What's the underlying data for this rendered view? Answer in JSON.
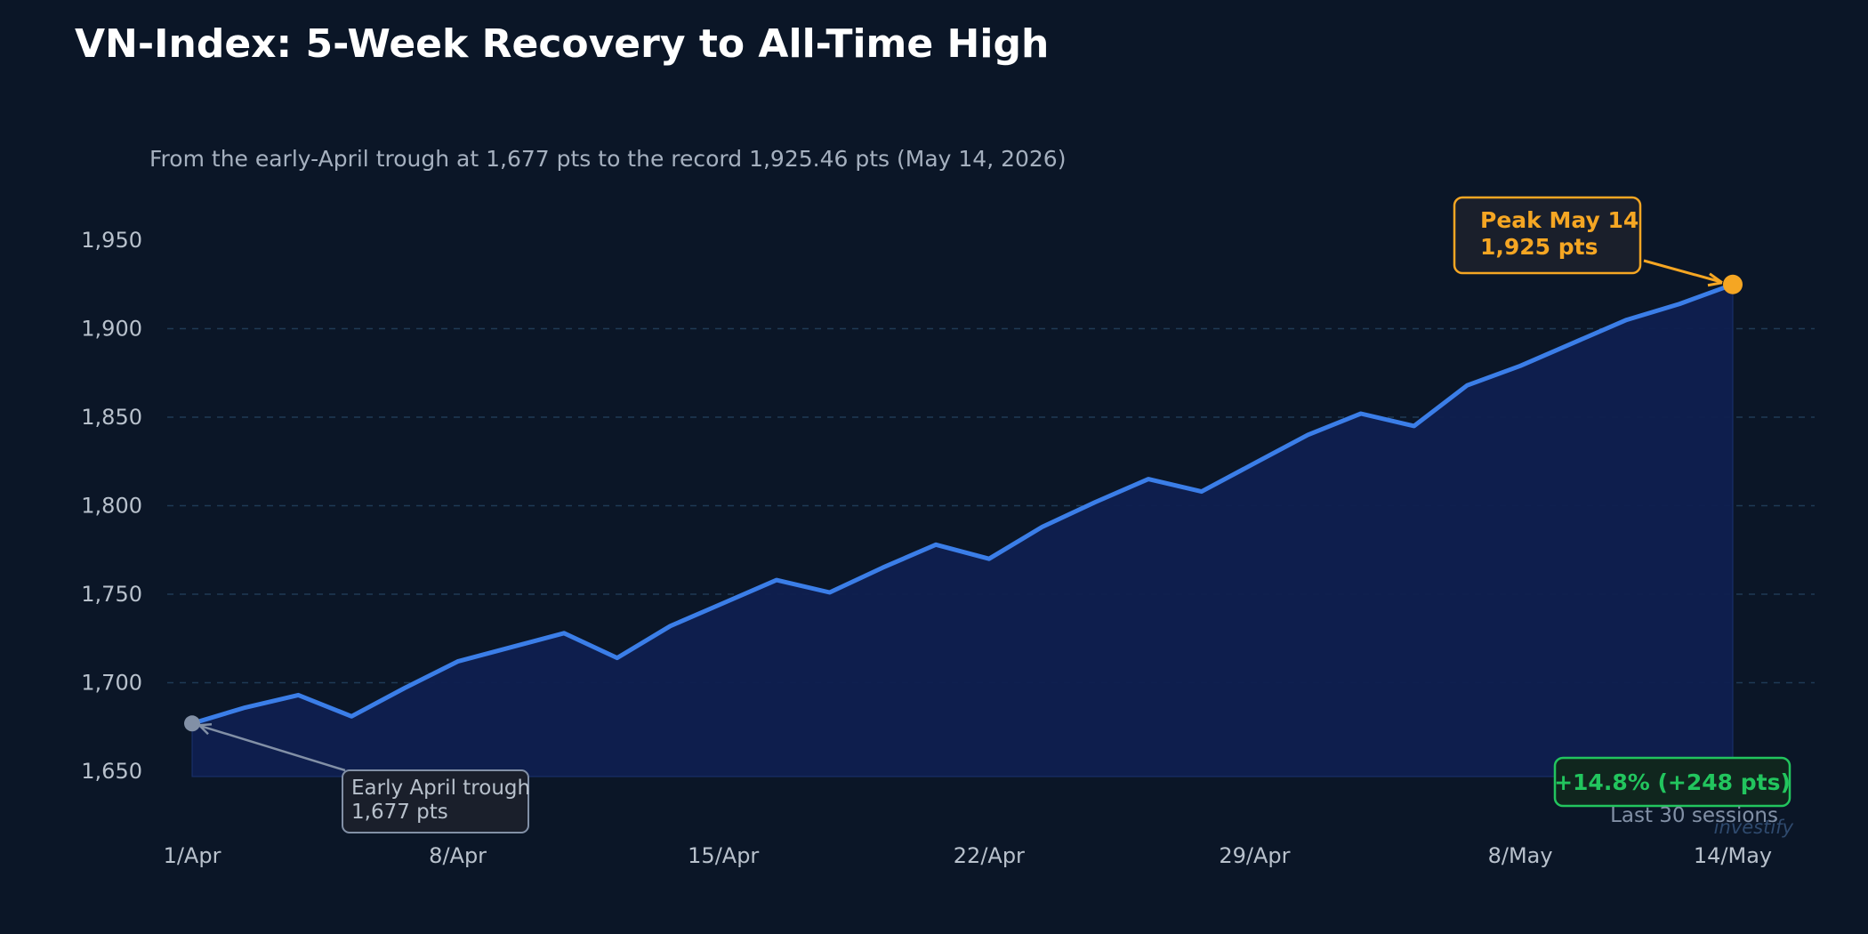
{
  "colors": {
    "background": "#0b1627",
    "line": "#3b7ee8",
    "area": "#0f1f4f",
    "grid": "#1f3a55",
    "peak": "#f5a623",
    "trough": "#8290a6",
    "gain": "#22c55e",
    "title": "#ffffff",
    "subtitle": "#a5b0bf",
    "axis_text": "#b8c1cc",
    "watermark": "#2f4a6e"
  },
  "chart_data": {
    "type": "area",
    "title": "VN-Index: 5-Week Recovery to All-Time High",
    "subtitle": "From the early-April trough at 1,677 pts to the record 1,925.46 pts (May 14, 2026)",
    "xlabel": "",
    "ylabel": "",
    "ylim": [
      1620,
      1975
    ],
    "yticks": [
      1650,
      1700,
      1750,
      1800,
      1850,
      1900,
      1950
    ],
    "ytick_labels": [
      "1,650",
      "1,700",
      "1,750",
      "1,800",
      "1,850",
      "1,900",
      "1,950"
    ],
    "xtick_labels": [
      "1/Apr",
      "8/Apr",
      "15/Apr",
      "22/Apr",
      "29/Apr",
      "8/May",
      "14/May"
    ],
    "xtick_session_index": [
      0,
      5,
      10,
      15,
      20,
      25,
      29
    ],
    "grid": "horizontal-dashed",
    "series": [
      {
        "values": [
          1677,
          1686,
          1693,
          1681,
          1697,
          1712,
          1720,
          1728,
          1714,
          1732,
          1745,
          1758,
          1751,
          1765,
          1778,
          1770,
          1788,
          1802,
          1815,
          1808,
          1824,
          1840,
          1852,
          1845,
          1868,
          1879,
          1892,
          1905,
          1914,
          1925
        ]
      }
    ],
    "annotations": {
      "peak": {
        "line1": "Peak May 14",
        "line2": "1,925 pts",
        "session_index": 29,
        "value": 1925
      },
      "trough": {
        "line1": "Early April trough",
        "line2": "1,677 pts",
        "session_index": 0,
        "value": 1677
      },
      "gain": {
        "label": "+14.8%  (+248 pts)",
        "note": "Last 30 sessions"
      }
    },
    "watermark": "investify"
  }
}
